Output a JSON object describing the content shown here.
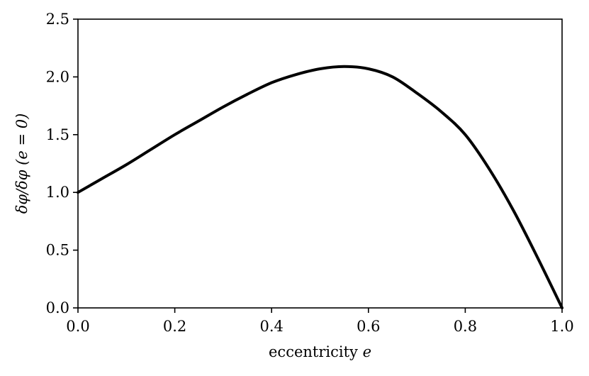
{
  "chart_data": {
    "type": "line",
    "xlabel_text": "eccentricity ",
    "xlabel_math": "e",
    "ylabel_math": "δφ/δφ (e = 0)",
    "xlim": [
      0.0,
      1.0
    ],
    "ylim": [
      0.0,
      2.5
    ],
    "xticks": [
      "0.0",
      "0.2",
      "0.4",
      "0.6",
      "0.8",
      "1.0"
    ],
    "yticks": [
      "0.0",
      "0.5",
      "1.0",
      "1.5",
      "2.0",
      "2.5"
    ],
    "grid": false,
    "line_color": "#000000",
    "series": [
      {
        "x": [
          0.0,
          0.05,
          0.1,
          0.15,
          0.2,
          0.25,
          0.3,
          0.35,
          0.4,
          0.45,
          0.5,
          0.55,
          0.6,
          0.65,
          0.7,
          0.75,
          0.8,
          0.85,
          0.9,
          0.95,
          1.0
        ],
        "y": [
          1.0,
          1.12,
          1.24,
          1.37,
          1.5,
          1.62,
          1.74,
          1.85,
          1.95,
          2.02,
          2.07,
          2.09,
          2.07,
          2.0,
          1.86,
          1.7,
          1.5,
          1.2,
          0.84,
          0.43,
          0.0
        ]
      }
    ]
  }
}
